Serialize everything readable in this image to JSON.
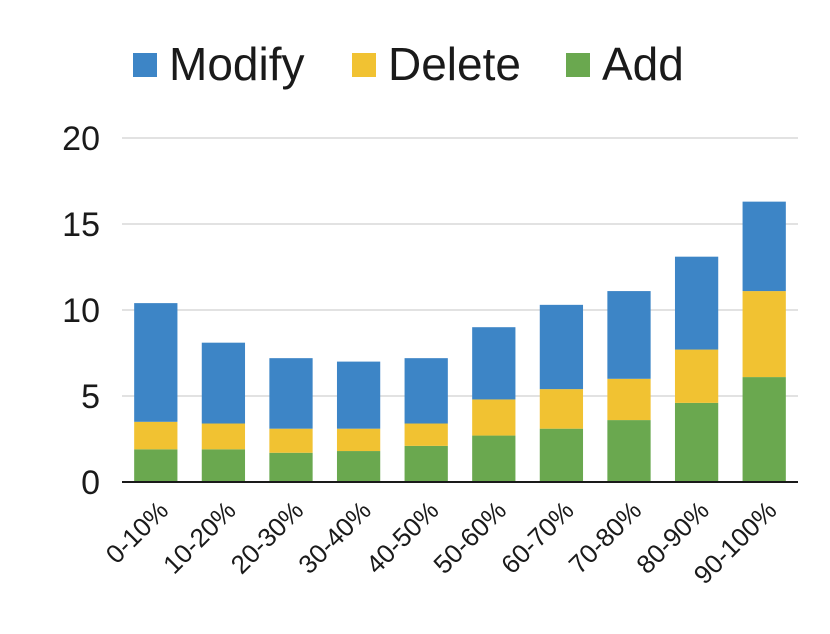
{
  "chart_data": {
    "type": "bar",
    "stacked": true,
    "categories": [
      "0-10%",
      "10-20%",
      "20-30%",
      "30-40%",
      "40-50%",
      "50-60%",
      "60-70%",
      "70-80%",
      "80-90%",
      "90-100%"
    ],
    "series": [
      {
        "name": "Add",
        "color": "#6aa84f",
        "values": [
          1.9,
          1.9,
          1.7,
          1.8,
          2.1,
          2.7,
          3.1,
          3.6,
          4.6,
          6.1
        ]
      },
      {
        "name": "Delete",
        "color": "#f1c232",
        "values": [
          1.6,
          1.5,
          1.4,
          1.3,
          1.3,
          2.1,
          2.3,
          2.4,
          3.1,
          5.0
        ]
      },
      {
        "name": "Modify",
        "color": "#3d85c6",
        "values": [
          6.9,
          4.7,
          4.1,
          3.9,
          3.8,
          4.2,
          4.9,
          5.1,
          5.4,
          5.2
        ]
      }
    ],
    "legend_order": [
      "Modify",
      "Delete",
      "Add"
    ],
    "legend_position": "top",
    "y_ticks": [
      "0",
      "5",
      "10",
      "15",
      "20"
    ],
    "ylim": [
      0,
      20
    ],
    "grid": true
  }
}
